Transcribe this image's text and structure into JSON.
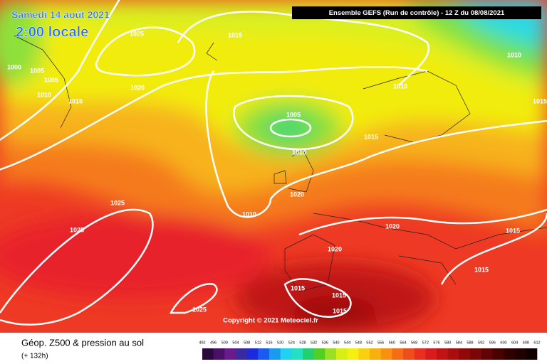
{
  "header": {
    "date": "Samedi 14 août 2021",
    "time": "2:00 locale",
    "run": "Ensemble GEFS  (Run de contrôle)  -  12 Z du 08/08/2021"
  },
  "isobar_labels": [
    1025,
    1015,
    1010,
    1000,
    1005,
    1005,
    1010,
    1015,
    1020,
    1010,
    1015,
    1005,
    1015,
    1010,
    1020,
    1025,
    1010,
    1025,
    1020,
    1015,
    1020,
    1015,
    1015,
    1015,
    1015,
    1025
  ],
  "copyright": "Copyright © 2021 Meteociel.fr",
  "footer": {
    "title": "Géop. Z500 & pression au sol",
    "lead": "(+ 132h)"
  },
  "scale_labels": [
    492,
    496,
    500,
    504,
    508,
    512,
    516,
    520,
    524,
    528,
    532,
    536,
    540,
    544,
    548,
    552,
    556,
    560,
    564,
    568,
    572,
    576,
    580,
    584,
    588,
    592,
    596,
    600,
    604,
    608,
    612
  ]
}
